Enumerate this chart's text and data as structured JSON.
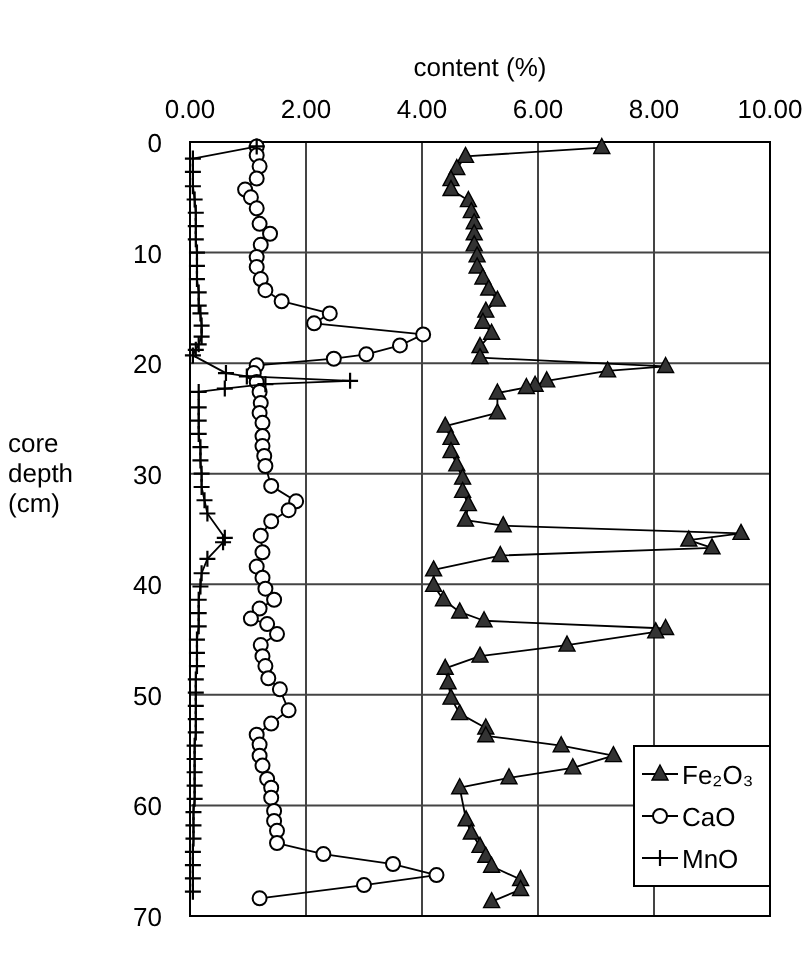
{
  "chart_data": {
    "type": "line",
    "xlabel": "content (%)",
    "ylabel": "core depth (cm)",
    "xlim": [
      0,
      10
    ],
    "xticks": [
      {
        "value": 0,
        "label": "0.00"
      },
      {
        "value": 2,
        "label": "2.00"
      },
      {
        "value": 4,
        "label": "4.00"
      },
      {
        "value": 6,
        "label": "6.00"
      },
      {
        "value": 8,
        "label": "8.00"
      },
      {
        "value": 10,
        "label": "10.00"
      }
    ],
    "ylim": [
      70,
      0
    ],
    "yticks": [
      0,
      10,
      20,
      30,
      40,
      50,
      60,
      70
    ],
    "grid": true,
    "legend": "bottom right",
    "line_style": "solid",
    "series": [
      {
        "name": "Fe₂O₃",
        "color": "#333333",
        "marker": "triangle",
        "x": [
          7.1,
          4.75,
          4.6,
          4.5,
          4.5,
          4.8,
          4.85,
          4.9,
          4.9,
          4.9,
          4.95,
          4.95,
          5.05,
          5.15,
          5.3,
          5.1,
          5.05,
          5.2,
          5.0,
          5.0,
          8.2,
          7.2,
          6.15,
          5.95,
          5.8,
          5.3,
          5.3,
          4.4,
          4.5,
          4.5,
          4.6,
          4.7,
          4.7,
          4.8,
          4.75,
          5.4,
          9.5,
          8.6,
          9.0,
          5.35,
          4.2,
          4.2,
          4.37,
          4.65,
          5.07,
          8.2,
          8.03,
          6.5,
          5.0,
          4.4,
          4.45,
          4.5,
          4.65,
          5.1,
          5.1,
          6.4,
          7.3,
          6.6,
          5.5,
          4.65,
          4.76,
          4.85,
          5.0,
          5.1,
          5.2,
          5.7,
          5.7,
          5.2
        ],
        "values": [
          0.5,
          1.3,
          2.4,
          3.4,
          4.3,
          5.3,
          6.3,
          7.3,
          8.3,
          9.3,
          10.3,
          11.3,
          12.3,
          13.3,
          14.3,
          15.3,
          16.3,
          17.3,
          18.5,
          19.5,
          20.3,
          20.7,
          21.6,
          22.0,
          22.2,
          22.7,
          24.5,
          25.7,
          26.8,
          28.0,
          29.2,
          30.4,
          31.6,
          32.8,
          34.2,
          34.7,
          35.4,
          36.0,
          36.7,
          37.4,
          38.7,
          40.1,
          41.4,
          42.5,
          43.3,
          44.0,
          44.3,
          45.5,
          46.5,
          47.6,
          48.9,
          50.3,
          51.7,
          53.0,
          53.7,
          54.6,
          55.5,
          56.6,
          57.5,
          58.4,
          61.3,
          62.5,
          63.7,
          64.6,
          65.5,
          66.7,
          67.6,
          68.7
        ]
      },
      {
        "name": "CaO",
        "color": "#000000",
        "marker": "circle",
        "x": [
          1.15,
          1.15,
          1.2,
          1.15,
          0.95,
          1.05,
          1.15,
          1.2,
          1.38,
          1.22,
          1.15,
          1.15,
          1.22,
          1.3,
          1.58,
          2.41,
          2.14,
          4.02,
          3.62,
          3.04,
          2.48,
          1.15,
          1.1,
          1.15,
          1.2,
          1.22,
          1.2,
          1.25,
          1.25,
          1.25,
          1.28,
          1.3,
          1.4,
          1.83,
          1.7,
          1.4,
          1.22,
          1.25,
          1.15,
          1.25,
          1.3,
          1.45,
          1.2,
          1.05,
          1.33,
          1.5,
          1.22,
          1.25,
          1.3,
          1.35,
          1.55,
          1.7,
          1.4,
          1.15,
          1.2,
          1.2,
          1.25,
          1.33,
          1.4,
          1.4,
          1.45,
          1.45,
          1.5,
          1.5,
          2.3,
          3.5,
          4.25,
          3.0,
          1.2
        ],
        "values": [
          0.4,
          1.2,
          2.2,
          3.3,
          4.3,
          5.0,
          6.0,
          7.4,
          8.3,
          9.3,
          10.4,
          11.3,
          12.4,
          13.4,
          14.4,
          15.5,
          16.4,
          17.4,
          18.4,
          19.2,
          19.6,
          20.2,
          20.9,
          21.7,
          22.6,
          23.6,
          24.5,
          25.4,
          26.6,
          27.5,
          28.4,
          29.3,
          31.1,
          32.5,
          33.3,
          34.3,
          35.6,
          37.1,
          38.4,
          39.4,
          40.4,
          41.4,
          42.2,
          43.1,
          43.6,
          44.5,
          45.5,
          46.5,
          47.4,
          48.5,
          49.5,
          51.4,
          52.6,
          53.6,
          54.5,
          55.5,
          56.4,
          57.6,
          58.4,
          59.3,
          60.5,
          61.4,
          62.3,
          63.4,
          64.4,
          65.3,
          66.3,
          67.2,
          68.4
        ]
      },
      {
        "name": "MnO",
        "color": "#000000",
        "marker": "cross",
        "x": [
          1.15,
          0.05,
          0.05,
          0.05,
          0.08,
          0.1,
          0.1,
          0.1,
          0.12,
          0.12,
          0.12,
          0.15,
          0.15,
          0.18,
          0.2,
          0.2,
          0.15,
          0.1,
          0.05,
          0.62,
          0.98,
          2.76,
          1.3,
          0.6,
          0.15,
          0.15,
          0.15,
          0.15,
          0.18,
          0.18,
          0.2,
          0.2,
          0.25,
          0.3,
          0.6,
          0.57,
          0.3,
          0.2,
          0.18,
          0.15,
          0.15,
          0.15,
          0.12,
          0.12,
          0.12,
          0.1,
          0.1,
          0.1,
          0.1,
          0.1,
          0.08,
          0.08,
          0.08,
          0.08,
          0.08,
          0.06,
          0.06,
          0.06,
          0.05,
          0.05,
          0.05,
          0.05
        ],
        "values": [
          0.4,
          1.5,
          2.7,
          4.0,
          5.2,
          6.4,
          7.6,
          8.8,
          10.0,
          11.2,
          12.4,
          13.6,
          14.8,
          15.5,
          16.6,
          17.6,
          18.3,
          18.8,
          19.3,
          20.9,
          21.2,
          21.6,
          21.9,
          22.3,
          22.6,
          24.0,
          25.2,
          26.4,
          27.6,
          28.8,
          30.0,
          31.2,
          32.4,
          33.6,
          35.8,
          36.2,
          37.7,
          39.0,
          40.2,
          41.4,
          42.6,
          43.8,
          45.0,
          46.2,
          47.4,
          48.6,
          49.8,
          51.0,
          52.2,
          53.4,
          54.6,
          55.8,
          57.0,
          58.2,
          59.4,
          60.6,
          61.8,
          63.0,
          64.2,
          65.4,
          66.6,
          67.8
        ]
      }
    ]
  }
}
